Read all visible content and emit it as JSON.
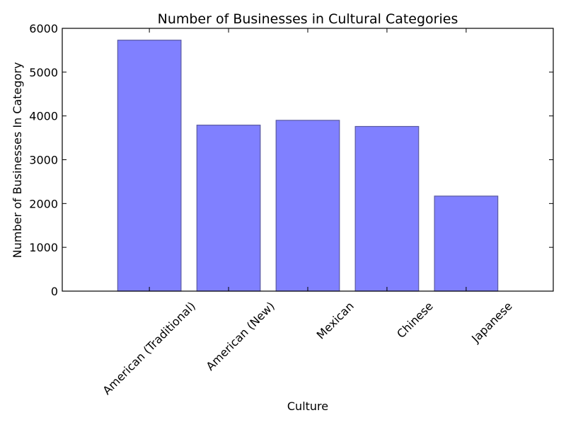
{
  "chart_data": {
    "type": "bar",
    "title": "Number of Businesses in Cultural Categories",
    "xlabel": "Culture",
    "ylabel": "Number of Businesses In Category",
    "categories": [
      "American (Traditional)",
      "American (New)",
      "Mexican",
      "Chinese",
      "Japanese"
    ],
    "values": [
      5730,
      3790,
      3900,
      3760,
      2170
    ],
    "ylim": [
      0,
      6000
    ],
    "yticks": [
      0,
      1000,
      2000,
      3000,
      4000,
      5000,
      6000
    ],
    "bar_color": "#8080ff",
    "bar_edge_color": "#5a5aa0",
    "grid": false,
    "legend": "none"
  }
}
